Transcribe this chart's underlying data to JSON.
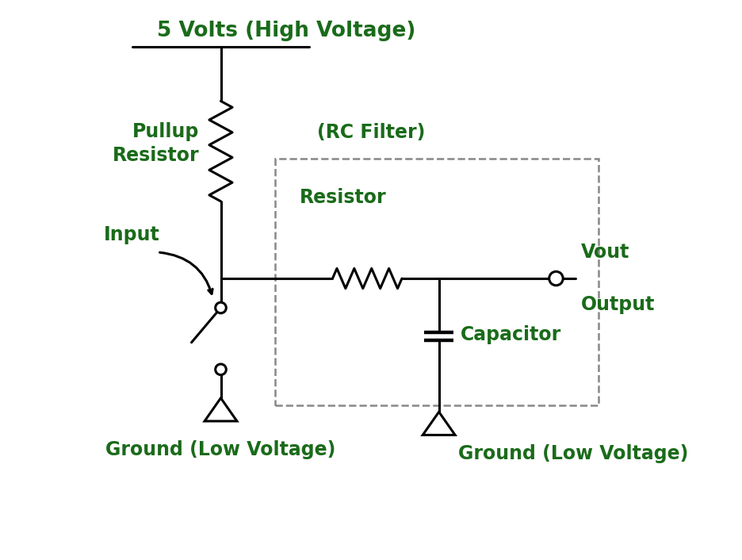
{
  "bg_color": "#ffffff",
  "circuit_color": "#000000",
  "text_color": "#1a6b1a",
  "line_width": 2.2,
  "title": "5 Volts (High Voltage)",
  "labels": {
    "pullup": "Pullup\nResistor",
    "rc_filter": "(RC Filter)",
    "resistor": "Resistor",
    "vout": "Vout",
    "output": "Output",
    "capacitor": "Capacitor",
    "ground1": "Ground (Low Voltage)",
    "ground2": "Ground (Low Voltage)",
    "input": "Input"
  },
  "font_size_title": 19,
  "font_size_label": 17
}
